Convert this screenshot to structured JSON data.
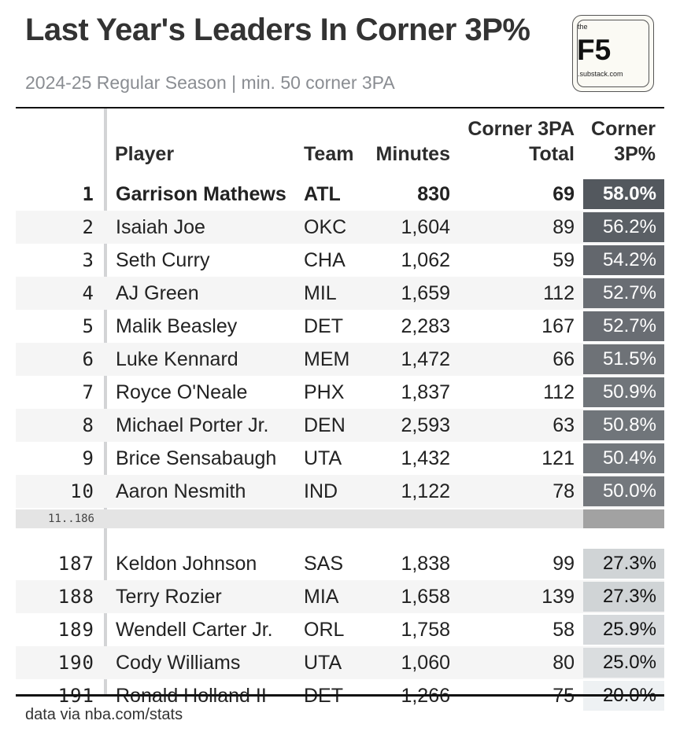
{
  "header": {
    "title": "Last Year's Leaders In Corner 3P%",
    "subtitle": "2024-25 Regular Season | min. 50 corner 3PA"
  },
  "logo": {
    "the": "the",
    "brand": "F5",
    "domain": ".substack.com"
  },
  "columns": {
    "player": "Player",
    "team": "Team",
    "minutes": "Minutes",
    "total_line1": "Corner 3PA",
    "total_line2": "Total",
    "pct_line1": "Corner",
    "pct_line2": "3P%"
  },
  "gap_label": "11..186",
  "footer": "data via nba.com/stats",
  "chart_data": {
    "type": "table",
    "color_scale": {
      "low_value": 20.0,
      "high_value": 58.0,
      "low_color": "#eef1f3",
      "high_color": "#53585e"
    },
    "top_rows": [
      {
        "rank": "1",
        "player": "Garrison Mathews",
        "team": "ATL",
        "minutes": "830",
        "total": "69",
        "pct_value": 58.0,
        "pct": "58.0%"
      },
      {
        "rank": "2",
        "player": "Isaiah Joe",
        "team": "OKC",
        "minutes": "1,604",
        "total": "89",
        "pct_value": 56.2,
        "pct": "56.2%"
      },
      {
        "rank": "3",
        "player": "Seth Curry",
        "team": "CHA",
        "minutes": "1,062",
        "total": "59",
        "pct_value": 54.2,
        "pct": "54.2%"
      },
      {
        "rank": "4",
        "player": "AJ Green",
        "team": "MIL",
        "minutes": "1,659",
        "total": "112",
        "pct_value": 52.7,
        "pct": "52.7%"
      },
      {
        "rank": "5",
        "player": "Malik Beasley",
        "team": "DET",
        "minutes": "2,283",
        "total": "167",
        "pct_value": 52.7,
        "pct": "52.7%"
      },
      {
        "rank": "6",
        "player": "Luke Kennard",
        "team": "MEM",
        "minutes": "1,472",
        "total": "66",
        "pct_value": 51.5,
        "pct": "51.5%"
      },
      {
        "rank": "7",
        "player": "Royce O'Neale",
        "team": "PHX",
        "minutes": "1,837",
        "total": "112",
        "pct_value": 50.9,
        "pct": "50.9%"
      },
      {
        "rank": "8",
        "player": "Michael Porter Jr.",
        "team": "DEN",
        "minutes": "2,593",
        "total": "63",
        "pct_value": 50.8,
        "pct": "50.8%"
      },
      {
        "rank": "9",
        "player": "Brice Sensabaugh",
        "team": "UTA",
        "minutes": "1,432",
        "total": "121",
        "pct_value": 50.4,
        "pct": "50.4%"
      },
      {
        "rank": "10",
        "player": "Aaron Nesmith",
        "team": "IND",
        "minutes": "1,122",
        "total": "78",
        "pct_value": 50.0,
        "pct": "50.0%"
      }
    ],
    "bottom_rows": [
      {
        "rank": "187",
        "player": "Keldon Johnson",
        "team": "SAS",
        "minutes": "1,838",
        "total": "99",
        "pct_value": 27.3,
        "pct": "27.3%"
      },
      {
        "rank": "188",
        "player": "Terry Rozier",
        "team": "MIA",
        "minutes": "1,658",
        "total": "139",
        "pct_value": 27.3,
        "pct": "27.3%"
      },
      {
        "rank": "189",
        "player": "Wendell Carter Jr.",
        "team": "ORL",
        "minutes": "1,758",
        "total": "58",
        "pct_value": 25.9,
        "pct": "25.9%"
      },
      {
        "rank": "190",
        "player": "Cody Williams",
        "team": "UTA",
        "minutes": "1,060",
        "total": "80",
        "pct_value": 25.0,
        "pct": "25.0%"
      },
      {
        "rank": "191",
        "player": "Ronald Holland II",
        "team": "DET",
        "minutes": "1,266",
        "total": "75",
        "pct_value": 20.0,
        "pct": "20.0%"
      }
    ]
  }
}
